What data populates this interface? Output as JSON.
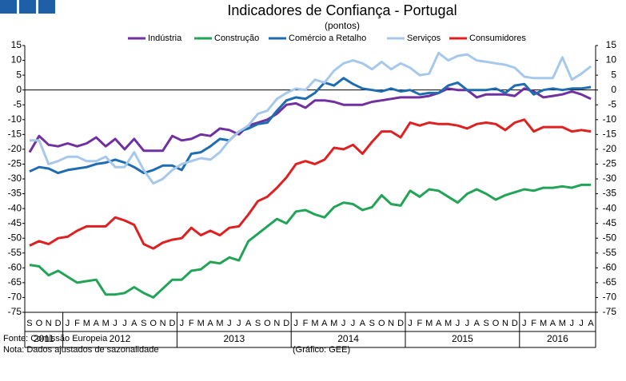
{
  "chart_data": {
    "type": "line",
    "title": "Indicadores de Confiança - Portugal",
    "subtitle": "(pontos)",
    "categories": [
      "S",
      "O",
      "N",
      "D",
      "J",
      "F",
      "M",
      "A",
      "M",
      "J",
      "J",
      "A",
      "S",
      "O",
      "N",
      "D",
      "J",
      "F",
      "M",
      "A",
      "M",
      "J",
      "J",
      "A",
      "S",
      "O",
      "N",
      "D",
      "J",
      "F",
      "M",
      "A",
      "M",
      "J",
      "J",
      "A",
      "S",
      "O",
      "N",
      "D",
      "J",
      "F",
      "M",
      "A",
      "M",
      "J",
      "J",
      "A",
      "S",
      "O",
      "N",
      "D",
      "J",
      "F",
      "M",
      "A",
      "M",
      "J",
      "J",
      "A"
    ],
    "years": [
      "2011",
      "2012",
      "2013",
      "2014",
      "2015",
      "2016"
    ],
    "ylim": [
      -75,
      15
    ],
    "yticks": [
      -75,
      -70,
      -65,
      -60,
      -55,
      -50,
      -45,
      -40,
      -35,
      -30,
      -25,
      -20,
      -15,
      -10,
      -5,
      0,
      5,
      10,
      15
    ],
    "grid": false,
    "series": [
      {
        "name": "Indústria",
        "color": "#7030a0",
        "values": [
          -21,
          -15.5,
          -18.5,
          -19,
          -18,
          -19,
          -18,
          -16,
          -19,
          -16.5,
          -20,
          -16.5,
          -20.5,
          -20.5,
          -20.5,
          -15.5,
          -17,
          -16.5,
          -15,
          -15.5,
          -13,
          -13.5,
          -15,
          -12,
          -11,
          -10,
          -8,
          -5,
          -4.5,
          -6,
          -3.5,
          -3.5,
          -4,
          -5,
          -5,
          -5,
          -4,
          -3.5,
          -3,
          -2.5,
          -2.5,
          -2.5,
          -2,
          -1,
          0.5,
          0,
          0,
          -2.5,
          -1.5,
          -1.5,
          -1.5,
          -2,
          0.5,
          -0.5,
          -2.5,
          -2,
          -1.5,
          -0.5,
          -1.5,
          -3
        ]
      },
      {
        "name": "Construção",
        "color": "#21a456",
        "values": [
          -59,
          -59.5,
          -62.5,
          -61,
          -63,
          -65,
          -64.5,
          -64,
          -69,
          -69,
          -68.5,
          -66.5,
          -68.5,
          -70,
          -67,
          -64,
          -64,
          -61,
          -60.5,
          -58,
          -58.5,
          -56.5,
          -57.5,
          -51,
          -48.5,
          -46,
          -43.5,
          -45,
          -41,
          -40.5,
          -42,
          -43,
          -39.5,
          -38,
          -38.5,
          -40.5,
          -39.5,
          -35.5,
          -38.5,
          -39,
          -34,
          -36,
          -33.5,
          -34,
          -36,
          -38,
          -35,
          -33.5,
          -35,
          -37,
          -35.5,
          -34.5,
          -33.5,
          -34,
          -33,
          -33,
          -32.5,
          -33,
          -32,
          -32
        ]
      },
      {
        "name": "Comércio a Retalho",
        "color": "#1f6db0",
        "values": [
          -27.5,
          -26,
          -26.5,
          -28,
          -27,
          -26.5,
          -26,
          -25,
          -24.5,
          -23.5,
          -24.5,
          -26,
          -28,
          -27,
          -25.5,
          -25.5,
          -27,
          -21.5,
          -21,
          -19,
          -16.5,
          -17,
          -14,
          -13,
          -11.5,
          -11,
          -7,
          -3.5,
          -2.5,
          -3,
          -1,
          2.5,
          1.5,
          4,
          2,
          0.5,
          0,
          -0.5,
          0.5,
          -0.5,
          0,
          -1.5,
          -1,
          -1,
          1.5,
          2.5,
          0,
          0,
          0,
          0.5,
          -1,
          1.5,
          2,
          -1.5,
          0,
          0.5,
          0,
          0.5,
          0.5,
          1
        ]
      },
      {
        "name": "Serviços",
        "color": "#a6c8ea",
        "values": [
          -17,
          -17,
          -25,
          -24,
          -22.5,
          -22.5,
          -24,
          -24,
          -22.5,
          -26,
          -26,
          -21,
          -27,
          -31.5,
          -30,
          -27,
          -25,
          -24,
          -23,
          -23.5,
          -21,
          -17,
          -14,
          -12,
          -8,
          -7,
          -3,
          -1,
          0.5,
          0,
          3.5,
          2.5,
          6.5,
          9,
          10,
          9,
          7,
          9.5,
          7,
          9,
          7.5,
          5,
          5.5,
          12.5,
          10,
          11.5,
          12,
          10,
          9.5,
          9,
          8.5,
          7.5,
          4.5,
          4,
          4,
          4,
          11,
          3.5,
          5.5,
          8
        ]
      },
      {
        "name": "Consumidores",
        "color": "#e02020",
        "values": [
          -52.5,
          -51,
          -52,
          -50,
          -49.5,
          -47.5,
          -46,
          -46,
          -46,
          -43,
          -44,
          -45.5,
          -52,
          -53.5,
          -51.5,
          -50.5,
          -50,
          -46.5,
          -49,
          -47.5,
          -49,
          -46.5,
          -46,
          -42,
          -37.5,
          -36,
          -33,
          -29.5,
          -25,
          -24,
          -25,
          -23.5,
          -19.5,
          -20,
          -18.5,
          -21.5,
          -17.5,
          -14,
          -14,
          -16,
          -11,
          -12,
          -11,
          -11.5,
          -11.5,
          -12,
          -13,
          -11.5,
          -11,
          -11.5,
          -13.5,
          -11,
          -10,
          -14,
          -12.5,
          -12.5,
          -12.5,
          -14,
          -13.5,
          -14
        ]
      }
    ]
  },
  "footer": {
    "source": "Fonte: Comissão Europeia",
    "note": "Nota: Dados ajustados de sazonalidade",
    "credit": "(Gráfico: GEE)"
  }
}
